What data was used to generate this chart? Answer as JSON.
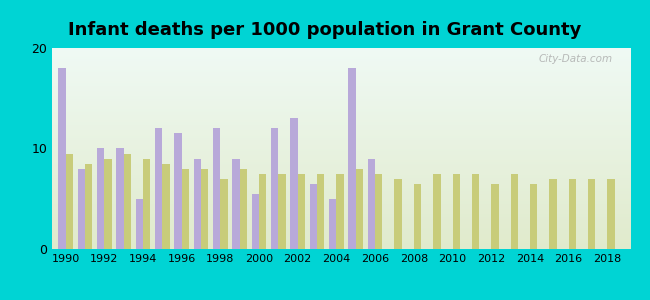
{
  "title": "Infant deaths per 1000 population in Grant County",
  "years": [
    1990,
    1991,
    1992,
    1993,
    1994,
    1995,
    1996,
    1997,
    1998,
    1999,
    2000,
    2001,
    2002,
    2003,
    2004,
    2005,
    2006,
    2007,
    2008,
    2009,
    2010,
    2011,
    2012,
    2013,
    2014,
    2015,
    2016,
    2017,
    2018
  ],
  "grant_county": [
    18.0,
    8.0,
    10.0,
    10.0,
    5.0,
    12.0,
    11.5,
    9.0,
    12.0,
    9.0,
    5.5,
    12.0,
    13.0,
    6.5,
    5.0,
    18.0,
    9.0,
    0,
    0,
    0,
    0,
    0,
    0,
    0,
    0,
    0,
    0,
    0,
    0
  ],
  "indiana": [
    9.5,
    8.5,
    9.0,
    9.5,
    9.0,
    8.5,
    8.0,
    8.0,
    7.0,
    8.0,
    7.5,
    7.5,
    7.5,
    7.5,
    7.5,
    8.0,
    7.5,
    7.0,
    6.5,
    7.5,
    7.5,
    7.5,
    6.5,
    7.5,
    6.5,
    7.0,
    7.0,
    7.0,
    7.0
  ],
  "grant_color": "#b8a9d9",
  "indiana_color": "#c8cc7a",
  "outer_bg": "#00d4d4",
  "ylim": [
    0,
    20
  ],
  "yticks": [
    0,
    10,
    20
  ],
  "bar_width": 0.38,
  "title_fontsize": 13,
  "legend_fontsize": 10,
  "watermark": "City-Data.com"
}
